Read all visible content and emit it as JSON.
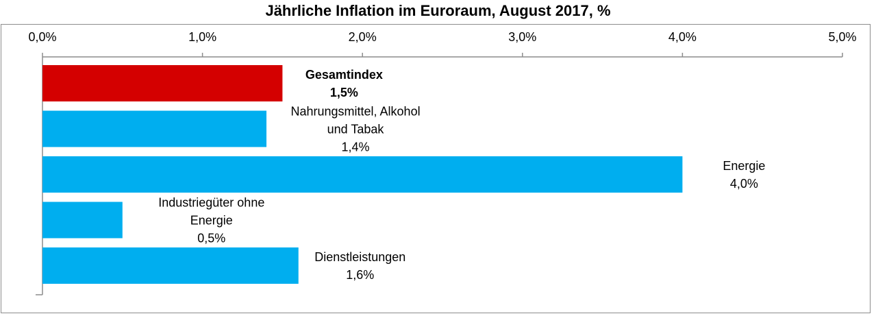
{
  "chart_data": {
    "type": "bar",
    "orientation": "horizontal",
    "title": "Jährliche Inflation im Euroraum, August 2017, %",
    "xlabel": "",
    "ylabel": "",
    "xlim": [
      0,
      5
    ],
    "x_ticks": [
      {
        "value": 0,
        "label": "0,0%"
      },
      {
        "value": 1,
        "label": "1,0%"
      },
      {
        "value": 2,
        "label": "2,0%"
      },
      {
        "value": 3,
        "label": "3,0%"
      },
      {
        "value": 4,
        "label": "4,0%"
      },
      {
        "value": 5,
        "label": "5,0%"
      }
    ],
    "grid": false,
    "legend": "none",
    "categories": [
      {
        "label_lines": [
          "Gesamtindex"
        ],
        "value": 1.5,
        "value_label": "1,5%",
        "color": "#d40000",
        "bold": true
      },
      {
        "label_lines": [
          "Nahrungsmittel, Alkohol",
          "und Tabak"
        ],
        "value": 1.4,
        "value_label": "1,4%",
        "color": "#00aeef",
        "bold": false
      },
      {
        "label_lines": [
          "Energie"
        ],
        "value": 4.0,
        "value_label": "4,0%",
        "color": "#00aeef",
        "bold": false
      },
      {
        "label_lines": [
          "Industriegüter ohne",
          "Energie"
        ],
        "value": 0.5,
        "value_label": "0,5%",
        "color": "#00aeef",
        "bold": false
      },
      {
        "label_lines": [
          "Dienstleistungen"
        ],
        "value": 1.6,
        "value_label": "1,6%",
        "color": "#00aeef",
        "bold": false
      }
    ]
  }
}
